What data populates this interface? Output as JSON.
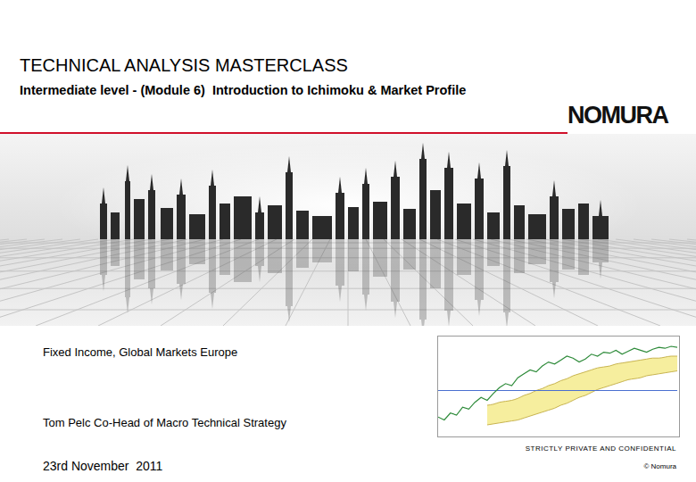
{
  "header": {
    "title": "TECHNICAL ANALYSIS MASTERCLASS",
    "subtitle": "Intermediate level - (Module 6)  Introduction to Ichimoku & Market Profile",
    "logo": "NOMURA"
  },
  "body": {
    "department": "Fixed Income, Global Markets Europe",
    "author": "Tom Pelc Co-Head of Macro Technical Strategy",
    "date": "23rd November  2011",
    "confidentiality": "STRICTLY PRIVATE AND CONFIDENTIAL",
    "copyright": "© Nomura"
  },
  "chart_data": {
    "type": "ichimoku",
    "tick_labels": false,
    "ylim": [
      0,
      100
    ],
    "reference_line": {
      "value": 45,
      "color": "#4a6fd0"
    },
    "series": [
      {
        "type": "line",
        "color": "#2e8b3a",
        "values": [
          18,
          15,
          22,
          20,
          28,
          26,
          33,
          38,
          35,
          42,
          48,
          52,
          50,
          58,
          62,
          66,
          64,
          70,
          74,
          72,
          76,
          80,
          78,
          74,
          77,
          82,
          80,
          84,
          83,
          86,
          82,
          85,
          88,
          86,
          84,
          87,
          89,
          88,
          90,
          89
        ]
      },
      {
        "type": "area",
        "color": "#f6ee9e",
        "values_high": [
          null,
          null,
          null,
          null,
          null,
          null,
          null,
          null,
          30,
          31,
          33,
          34,
          35,
          37,
          40,
          42,
          45,
          47,
          50,
          52,
          55,
          57,
          60,
          62,
          64,
          66,
          68,
          69,
          70,
          72,
          73,
          74,
          75,
          76,
          77,
          78,
          78,
          79,
          80,
          80
        ],
        "values_low": [
          null,
          null,
          null,
          null,
          null,
          null,
          null,
          null,
          10,
          11,
          12,
          13,
          14,
          15,
          17,
          19,
          21,
          23,
          25,
          27,
          30,
          32,
          35,
          38,
          40,
          43,
          46,
          48,
          50,
          52,
          54,
          56,
          57,
          58,
          60,
          61,
          62,
          63,
          64,
          65
        ]
      }
    ]
  }
}
